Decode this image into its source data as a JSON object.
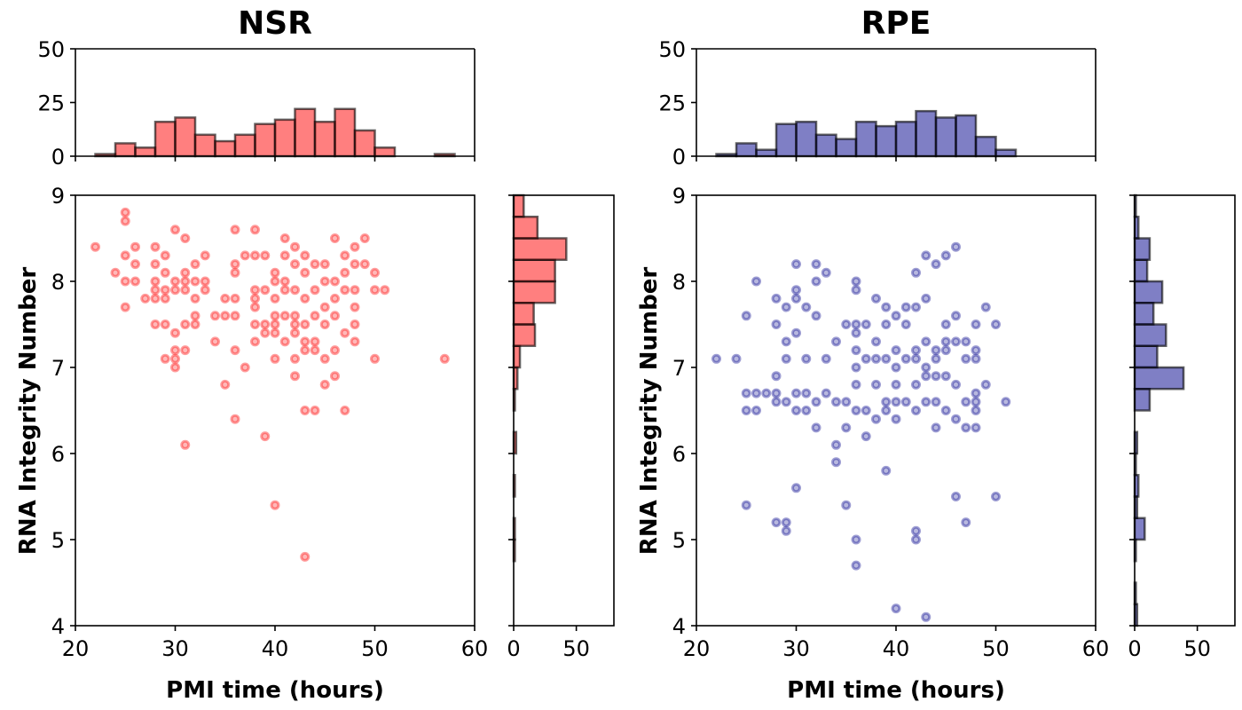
{
  "chart_data": [
    {
      "type": "scatter",
      "title": "NSR",
      "xlabel": "PMI time (hours)",
      "ylabel": "RNA Integrity Number",
      "xlim": [
        20,
        60
      ],
      "ylim": [
        4,
        9
      ],
      "xticks": [
        "20",
        "30",
        "40",
        "50",
        "60"
      ],
      "yticks": [
        "4",
        "5",
        "6",
        "7",
        "8",
        "9"
      ],
      "color": "#ff0000",
      "points": [
        [
          22,
          8.4
        ],
        [
          24,
          8.1
        ],
        [
          25,
          8.8
        ],
        [
          25,
          8.7
        ],
        [
          25,
          8.3
        ],
        [
          25,
          8.0
        ],
        [
          25,
          7.7
        ],
        [
          26,
          8.4
        ],
        [
          26,
          8.2
        ],
        [
          26,
          8.0
        ],
        [
          27,
          7.8
        ],
        [
          28,
          8.4
        ],
        [
          28,
          8.2
        ],
        [
          28,
          8.0
        ],
        [
          28,
          7.9
        ],
        [
          28,
          7.8
        ],
        [
          28,
          7.5
        ],
        [
          29,
          8.3
        ],
        [
          29,
          8.1
        ],
        [
          29,
          7.9
        ],
        [
          29,
          7.8
        ],
        [
          29,
          7.5
        ],
        [
          29,
          7.1
        ],
        [
          30,
          8.6
        ],
        [
          30,
          8.0
        ],
        [
          30,
          7.9
        ],
        [
          30,
          7.4
        ],
        [
          30,
          7.2
        ],
        [
          30,
          7.1
        ],
        [
          30,
          7.0
        ],
        [
          31,
          8.5
        ],
        [
          31,
          8.1
        ],
        [
          31,
          8.0
        ],
        [
          31,
          7.9
        ],
        [
          31,
          7.5
        ],
        [
          31,
          7.2
        ],
        [
          31,
          6.1
        ],
        [
          32,
          8.2
        ],
        [
          32,
          8.0
        ],
        [
          32,
          7.8
        ],
        [
          32,
          7.6
        ],
        [
          32,
          7.5
        ],
        [
          33,
          8.3
        ],
        [
          33,
          8.0
        ],
        [
          33,
          7.9
        ],
        [
          34,
          7.6
        ],
        [
          34,
          7.3
        ],
        [
          35,
          7.8
        ],
        [
          35,
          7.6
        ],
        [
          35,
          6.8
        ],
        [
          36,
          8.6
        ],
        [
          36,
          8.2
        ],
        [
          36,
          8.1
        ],
        [
          36,
          7.8
        ],
        [
          36,
          7.6
        ],
        [
          36,
          7.2
        ],
        [
          36,
          6.4
        ],
        [
          37,
          8.3
        ],
        [
          37,
          7.0
        ],
        [
          38,
          8.6
        ],
        [
          38,
          8.3
        ],
        [
          38,
          7.9
        ],
        [
          38,
          7.8
        ],
        [
          38,
          7.7
        ],
        [
          38,
          7.5
        ],
        [
          38,
          7.3
        ],
        [
          39,
          8.3
        ],
        [
          39,
          7.9
        ],
        [
          39,
          7.5
        ],
        [
          39,
          7.4
        ],
        [
          39,
          6.2
        ],
        [
          40,
          8.1
        ],
        [
          40,
          8.0
        ],
        [
          40,
          7.8
        ],
        [
          40,
          7.6
        ],
        [
          40,
          7.5
        ],
        [
          40,
          7.4
        ],
        [
          40,
          7.1
        ],
        [
          40,
          5.4
        ],
        [
          41,
          8.5
        ],
        [
          41,
          8.3
        ],
        [
          41,
          8.0
        ],
        [
          41,
          7.9
        ],
        [
          41,
          7.6
        ],
        [
          41,
          7.3
        ],
        [
          42,
          8.4
        ],
        [
          42,
          8.2
        ],
        [
          42,
          7.9
        ],
        [
          42,
          7.6
        ],
        [
          42,
          7.5
        ],
        [
          42,
          7.4
        ],
        [
          42,
          7.1
        ],
        [
          42,
          6.9
        ],
        [
          43,
          8.3
        ],
        [
          43,
          8.1
        ],
        [
          43,
          7.8
        ],
        [
          43,
          7.5
        ],
        [
          43,
          7.3
        ],
        [
          43,
          7.2
        ],
        [
          43,
          6.5
        ],
        [
          43,
          4.8
        ],
        [
          44,
          8.2
        ],
        [
          44,
          7.9
        ],
        [
          44,
          7.6
        ],
        [
          44,
          7.3
        ],
        [
          44,
          7.2
        ],
        [
          44,
          6.5
        ],
        [
          45,
          8.2
        ],
        [
          45,
          8.0
        ],
        [
          45,
          7.7
        ],
        [
          45,
          7.5
        ],
        [
          45,
          7.1
        ],
        [
          45,
          6.8
        ],
        [
          46,
          8.5
        ],
        [
          46,
          8.0
        ],
        [
          46,
          7.8
        ],
        [
          46,
          7.6
        ],
        [
          46,
          7.2
        ],
        [
          46,
          6.9
        ],
        [
          47,
          8.3
        ],
        [
          47,
          8.1
        ],
        [
          47,
          7.9
        ],
        [
          47,
          7.4
        ],
        [
          47,
          6.5
        ],
        [
          48,
          8.4
        ],
        [
          48,
          8.2
        ],
        [
          48,
          7.9
        ],
        [
          48,
          7.7
        ],
        [
          48,
          7.5
        ],
        [
          48,
          7.3
        ],
        [
          49,
          8.5
        ],
        [
          49,
          8.2
        ],
        [
          50,
          8.1
        ],
        [
          50,
          7.9
        ],
        [
          50,
          7.1
        ],
        [
          51,
          7.9
        ],
        [
          57,
          7.1
        ]
      ],
      "x_hist": {
        "ylim": [
          0,
          50
        ],
        "yticks": [
          "0",
          "25",
          "50"
        ],
        "edges": [
          22,
          24,
          26,
          28,
          30,
          32,
          34,
          36,
          38,
          40,
          42,
          44,
          46,
          48,
          50,
          52,
          54,
          56,
          58
        ],
        "counts": [
          1,
          6,
          4,
          16,
          18,
          10,
          7,
          10,
          15,
          17,
          22,
          16,
          22,
          12,
          4,
          0,
          0,
          1
        ]
      },
      "y_hist": {
        "xlim": [
          0,
          80
        ],
        "xticks": [
          "0",
          "50"
        ],
        "edges": [
          4.0,
          4.25,
          4.5,
          4.75,
          5.0,
          5.25,
          5.5,
          5.75,
          6.0,
          6.25,
          6.5,
          6.75,
          7.0,
          7.25,
          7.5,
          7.75,
          8.0,
          8.25,
          8.5,
          8.75,
          9.0
        ],
        "counts": [
          0,
          0,
          0,
          1,
          1,
          0,
          1,
          0,
          2,
          0,
          1,
          3,
          5,
          17,
          16,
          33,
          33,
          42,
          19,
          8
        ]
      }
    },
    {
      "type": "scatter",
      "title": "RPE",
      "xlabel": "PMI time (hours)",
      "ylabel": "RNA Integrity Number",
      "xlim": [
        20,
        60
      ],
      "ylim": [
        4,
        9
      ],
      "xticks": [
        "20",
        "30",
        "40",
        "50",
        "60"
      ],
      "yticks": [
        "4",
        "5",
        "6",
        "7",
        "8",
        "9"
      ],
      "color": "#00008b",
      "points": [
        [
          22,
          7.1
        ],
        [
          24,
          7.1
        ],
        [
          25,
          7.6
        ],
        [
          25,
          6.7
        ],
        [
          25,
          6.5
        ],
        [
          25,
          5.4
        ],
        [
          26,
          8.0
        ],
        [
          26,
          6.7
        ],
        [
          26,
          6.5
        ],
        [
          27,
          6.7
        ],
        [
          28,
          7.8
        ],
        [
          28,
          7.5
        ],
        [
          28,
          6.9
        ],
        [
          28,
          6.7
        ],
        [
          28,
          6.6
        ],
        [
          28,
          5.2
        ],
        [
          29,
          7.7
        ],
        [
          29,
          7.3
        ],
        [
          29,
          7.1
        ],
        [
          29,
          6.6
        ],
        [
          29,
          5.2
        ],
        [
          29,
          5.1
        ],
        [
          30,
          8.2
        ],
        [
          30,
          7.9
        ],
        [
          30,
          7.8
        ],
        [
          30,
          7.4
        ],
        [
          30,
          6.7
        ],
        [
          30,
          6.5
        ],
        [
          30,
          5.6
        ],
        [
          31,
          7.7
        ],
        [
          31,
          7.1
        ],
        [
          31,
          6.7
        ],
        [
          31,
          6.5
        ],
        [
          32,
          8.2
        ],
        [
          32,
          8.0
        ],
        [
          32,
          7.6
        ],
        [
          32,
          6.6
        ],
        [
          32,
          6.3
        ],
        [
          33,
          8.1
        ],
        [
          33,
          7.1
        ],
        [
          33,
          6.7
        ],
        [
          34,
          7.3
        ],
        [
          34,
          6.6
        ],
        [
          34,
          6.1
        ],
        [
          34,
          5.9
        ],
        [
          35,
          7.5
        ],
        [
          35,
          6.6
        ],
        [
          35,
          6.3
        ],
        [
          35,
          5.4
        ],
        [
          36,
          8.0
        ],
        [
          36,
          7.9
        ],
        [
          36,
          7.5
        ],
        [
          36,
          7.4
        ],
        [
          36,
          7.2
        ],
        [
          36,
          7.0
        ],
        [
          36,
          6.8
        ],
        [
          36,
          6.5
        ],
        [
          36,
          5.0
        ],
        [
          36,
          4.7
        ],
        [
          37,
          7.5
        ],
        [
          37,
          7.1
        ],
        [
          37,
          6.5
        ],
        [
          37,
          6.2
        ],
        [
          38,
          7.8
        ],
        [
          38,
          7.3
        ],
        [
          38,
          7.1
        ],
        [
          38,
          6.8
        ],
        [
          38,
          6.4
        ],
        [
          39,
          7.7
        ],
        [
          39,
          7.5
        ],
        [
          39,
          7.1
        ],
        [
          39,
          6.6
        ],
        [
          39,
          6.5
        ],
        [
          39,
          5.8
        ],
        [
          40,
          7.6
        ],
        [
          40,
          7.2
        ],
        [
          40,
          7.0
        ],
        [
          40,
          6.8
        ],
        [
          40,
          6.6
        ],
        [
          40,
          6.4
        ],
        [
          40,
          4.2
        ],
        [
          41,
          7.7
        ],
        [
          41,
          7.5
        ],
        [
          41,
          7.1
        ],
        [
          41,
          6.6
        ],
        [
          42,
          8.1
        ],
        [
          42,
          7.7
        ],
        [
          42,
          7.2
        ],
        [
          42,
          7.1
        ],
        [
          42,
          6.8
        ],
        [
          42,
          6.5
        ],
        [
          42,
          5.1
        ],
        [
          42,
          5.0
        ],
        [
          43,
          8.3
        ],
        [
          43,
          7.8
        ],
        [
          43,
          7.3
        ],
        [
          43,
          7.0
        ],
        [
          43,
          6.9
        ],
        [
          43,
          6.6
        ],
        [
          43,
          4.1
        ],
        [
          44,
          8.2
        ],
        [
          44,
          7.2
        ],
        [
          44,
          7.1
        ],
        [
          44,
          6.9
        ],
        [
          44,
          6.6
        ],
        [
          44,
          6.3
        ],
        [
          45,
          8.3
        ],
        [
          45,
          7.5
        ],
        [
          45,
          7.3
        ],
        [
          45,
          7.2
        ],
        [
          45,
          6.9
        ],
        [
          45,
          6.5
        ],
        [
          46,
          8.4
        ],
        [
          46,
          7.6
        ],
        [
          46,
          7.3
        ],
        [
          46,
          6.8
        ],
        [
          46,
          6.4
        ],
        [
          46,
          5.5
        ],
        [
          47,
          7.3
        ],
        [
          47,
          7.1
        ],
        [
          47,
          6.6
        ],
        [
          47,
          6.3
        ],
        [
          47,
          5.2
        ],
        [
          48,
          7.5
        ],
        [
          48,
          7.2
        ],
        [
          48,
          7.1
        ],
        [
          48,
          6.7
        ],
        [
          48,
          6.6
        ],
        [
          48,
          6.5
        ],
        [
          48,
          6.3
        ],
        [
          49,
          7.7
        ],
        [
          49,
          6.8
        ],
        [
          50,
          7.5
        ],
        [
          50,
          5.5
        ],
        [
          51,
          6.6
        ]
      ],
      "x_hist": {
        "ylim": [
          0,
          50
        ],
        "yticks": [
          "0",
          "25",
          "50"
        ],
        "edges": [
          22,
          24,
          26,
          28,
          30,
          32,
          34,
          36,
          38,
          40,
          42,
          44,
          46,
          48,
          50,
          52
        ],
        "counts": [
          1,
          6,
          3,
          15,
          16,
          10,
          8,
          16,
          14,
          16,
          21,
          18,
          19,
          9,
          3
        ]
      },
      "y_hist": {
        "xlim": [
          0,
          80
        ],
        "xticks": [
          "0",
          "50"
        ],
        "edges": [
          4.0,
          4.25,
          4.5,
          4.75,
          5.0,
          5.25,
          5.5,
          5.75,
          6.0,
          6.25,
          6.5,
          6.75,
          7.0,
          7.25,
          7.5,
          7.75,
          8.0,
          8.25,
          8.5,
          8.75,
          9.0
        ],
        "counts": [
          2,
          1,
          0,
          1,
          8,
          2,
          3,
          1,
          2,
          0,
          12,
          39,
          18,
          25,
          15,
          22,
          10,
          12,
          3,
          1
        ]
      }
    }
  ]
}
